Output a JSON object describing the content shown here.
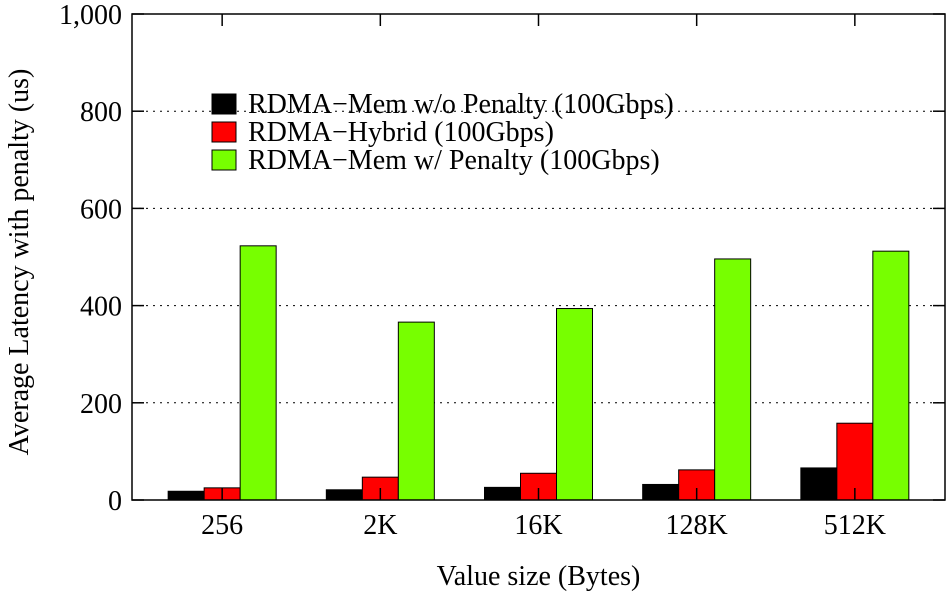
{
  "chart_data": {
    "type": "bar",
    "title": "",
    "xlabel": "Value size (Bytes)",
    "ylabel": "Average Latency with penalty (us)",
    "ylim": [
      0,
      1000
    ],
    "yticks": [
      0,
      200,
      400,
      600,
      800,
      1000
    ],
    "ytick_labels": [
      "0",
      "200",
      "400",
      "600",
      "800",
      "1,000"
    ],
    "grid": "horizontal dotted",
    "legend_position": "top-left",
    "categories": [
      "256",
      "2K",
      "16K",
      "128K",
      "512K"
    ],
    "series": [
      {
        "name": "RDMA−Mem w/o Penalty (100Gbps)",
        "color": "#000000",
        "values": [
          18,
          21,
          26,
          32,
          66
        ]
      },
      {
        "name": "RDMA−Hybrid (100Gbps)",
        "color": "#ff0000",
        "values": [
          25,
          47,
          55,
          62,
          158
        ]
      },
      {
        "name": "RDMA−Mem w/ Penalty (100Gbps)",
        "color": "#77ff00",
        "values": [
          523,
          366,
          394,
          496,
          512
        ]
      }
    ]
  }
}
